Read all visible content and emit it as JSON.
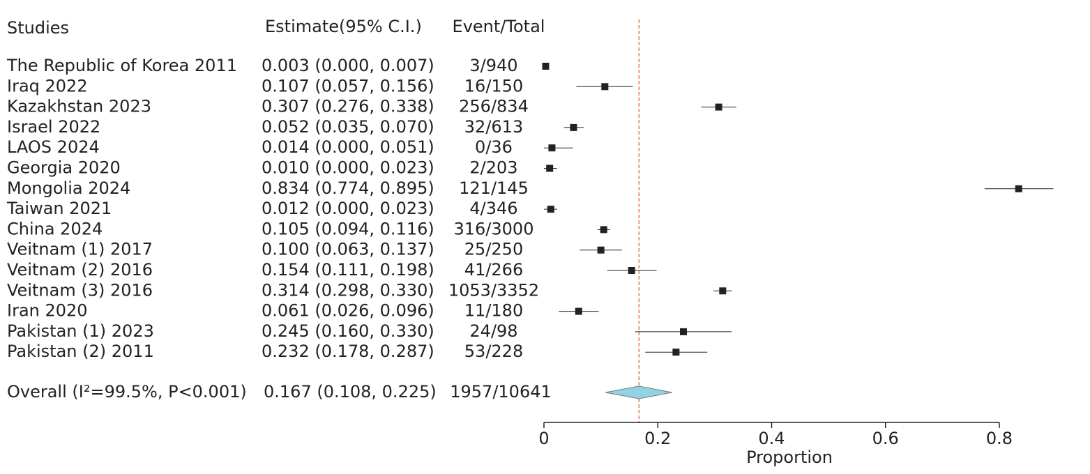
{
  "chart_data": {
    "type": "forest",
    "headers": {
      "study": "Studies",
      "estimate": "Estimate(95% C.I.)",
      "events": "Event/Total"
    },
    "studies": [
      "The Republic of Korea 2011",
      "Iraq 2022",
      "Kazakhstan 2023",
      "Israel 2022",
      "LAOS 2024",
      "Georgia 2020",
      "Mongolia 2024",
      "Taiwan 2021",
      "China 2024",
      "Veitnam (1) 2017",
      "Veitnam (2) 2016",
      "Veitnam (3) 2016",
      "Iran 2020",
      "Pakistan (1) 2023",
      "Pakistan (2) 2011"
    ],
    "values": [
      0.003,
      0.107,
      0.307,
      0.052,
      0.014,
      0.01,
      0.834,
      0.012,
      0.105,
      0.1,
      0.154,
      0.314,
      0.061,
      0.245,
      0.232
    ],
    "lower": [
      0.0,
      0.057,
      0.276,
      0.035,
      0.0,
      0.0,
      0.774,
      0.0,
      0.094,
      0.063,
      0.111,
      0.298,
      0.026,
      0.16,
      0.178
    ],
    "upper": [
      0.007,
      0.156,
      0.338,
      0.07,
      0.051,
      0.023,
      0.895,
      0.023,
      0.116,
      0.137,
      0.198,
      0.33,
      0.096,
      0.33,
      0.287
    ],
    "value_labels": [
      "0.003 (0.000, 0.007)",
      "0.107 (0.057, 0.156)",
      "0.307 (0.276, 0.338)",
      "0.052 (0.035, 0.070)",
      "0.014 (0.000, 0.051)",
      "0.010 (0.000, 0.023)",
      "0.834 (0.774, 0.895)",
      "0.012 (0.000, 0.023)",
      "0.105 (0.094, 0.116)",
      "0.100 (0.063, 0.137)",
      "0.154 (0.111, 0.198)",
      "0.314 (0.298, 0.330)",
      "0.061 (0.026, 0.096)",
      "0.245 (0.160, 0.330)",
      "0.232 (0.178, 0.287)"
    ],
    "events": [
      "3/940",
      "16/150",
      "256/834",
      "32/613",
      "0/36",
      "2/203",
      "121/145",
      "4/346",
      "316/3000",
      "25/250",
      "41/266",
      "1053/3352",
      "11/180",
      "24/98",
      "53/228"
    ],
    "overall": {
      "label": "Overall (I²=99.5%, P<0.001)",
      "value": 0.167,
      "lower": 0.108,
      "upper": 0.225,
      "value_label": "0.167 (0.108, 0.225)",
      "events": "1957/10641"
    },
    "xlabel": "Proportion",
    "xlim": [
      0,
      0.8
    ],
    "xticks": [
      0,
      0.2,
      0.4,
      0.6,
      0.8
    ],
    "color": "#222222",
    "diamond_color": "#90d4e4",
    "reference_line": true,
    "reference_color": "#e07b54"
  }
}
